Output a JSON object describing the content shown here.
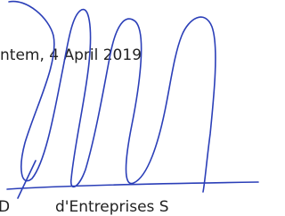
{
  "document": {
    "place_date": "ntem, 4 April 2019",
    "footer_initial": "D",
    "footer_text": "d'Entreprises S"
  }
}
